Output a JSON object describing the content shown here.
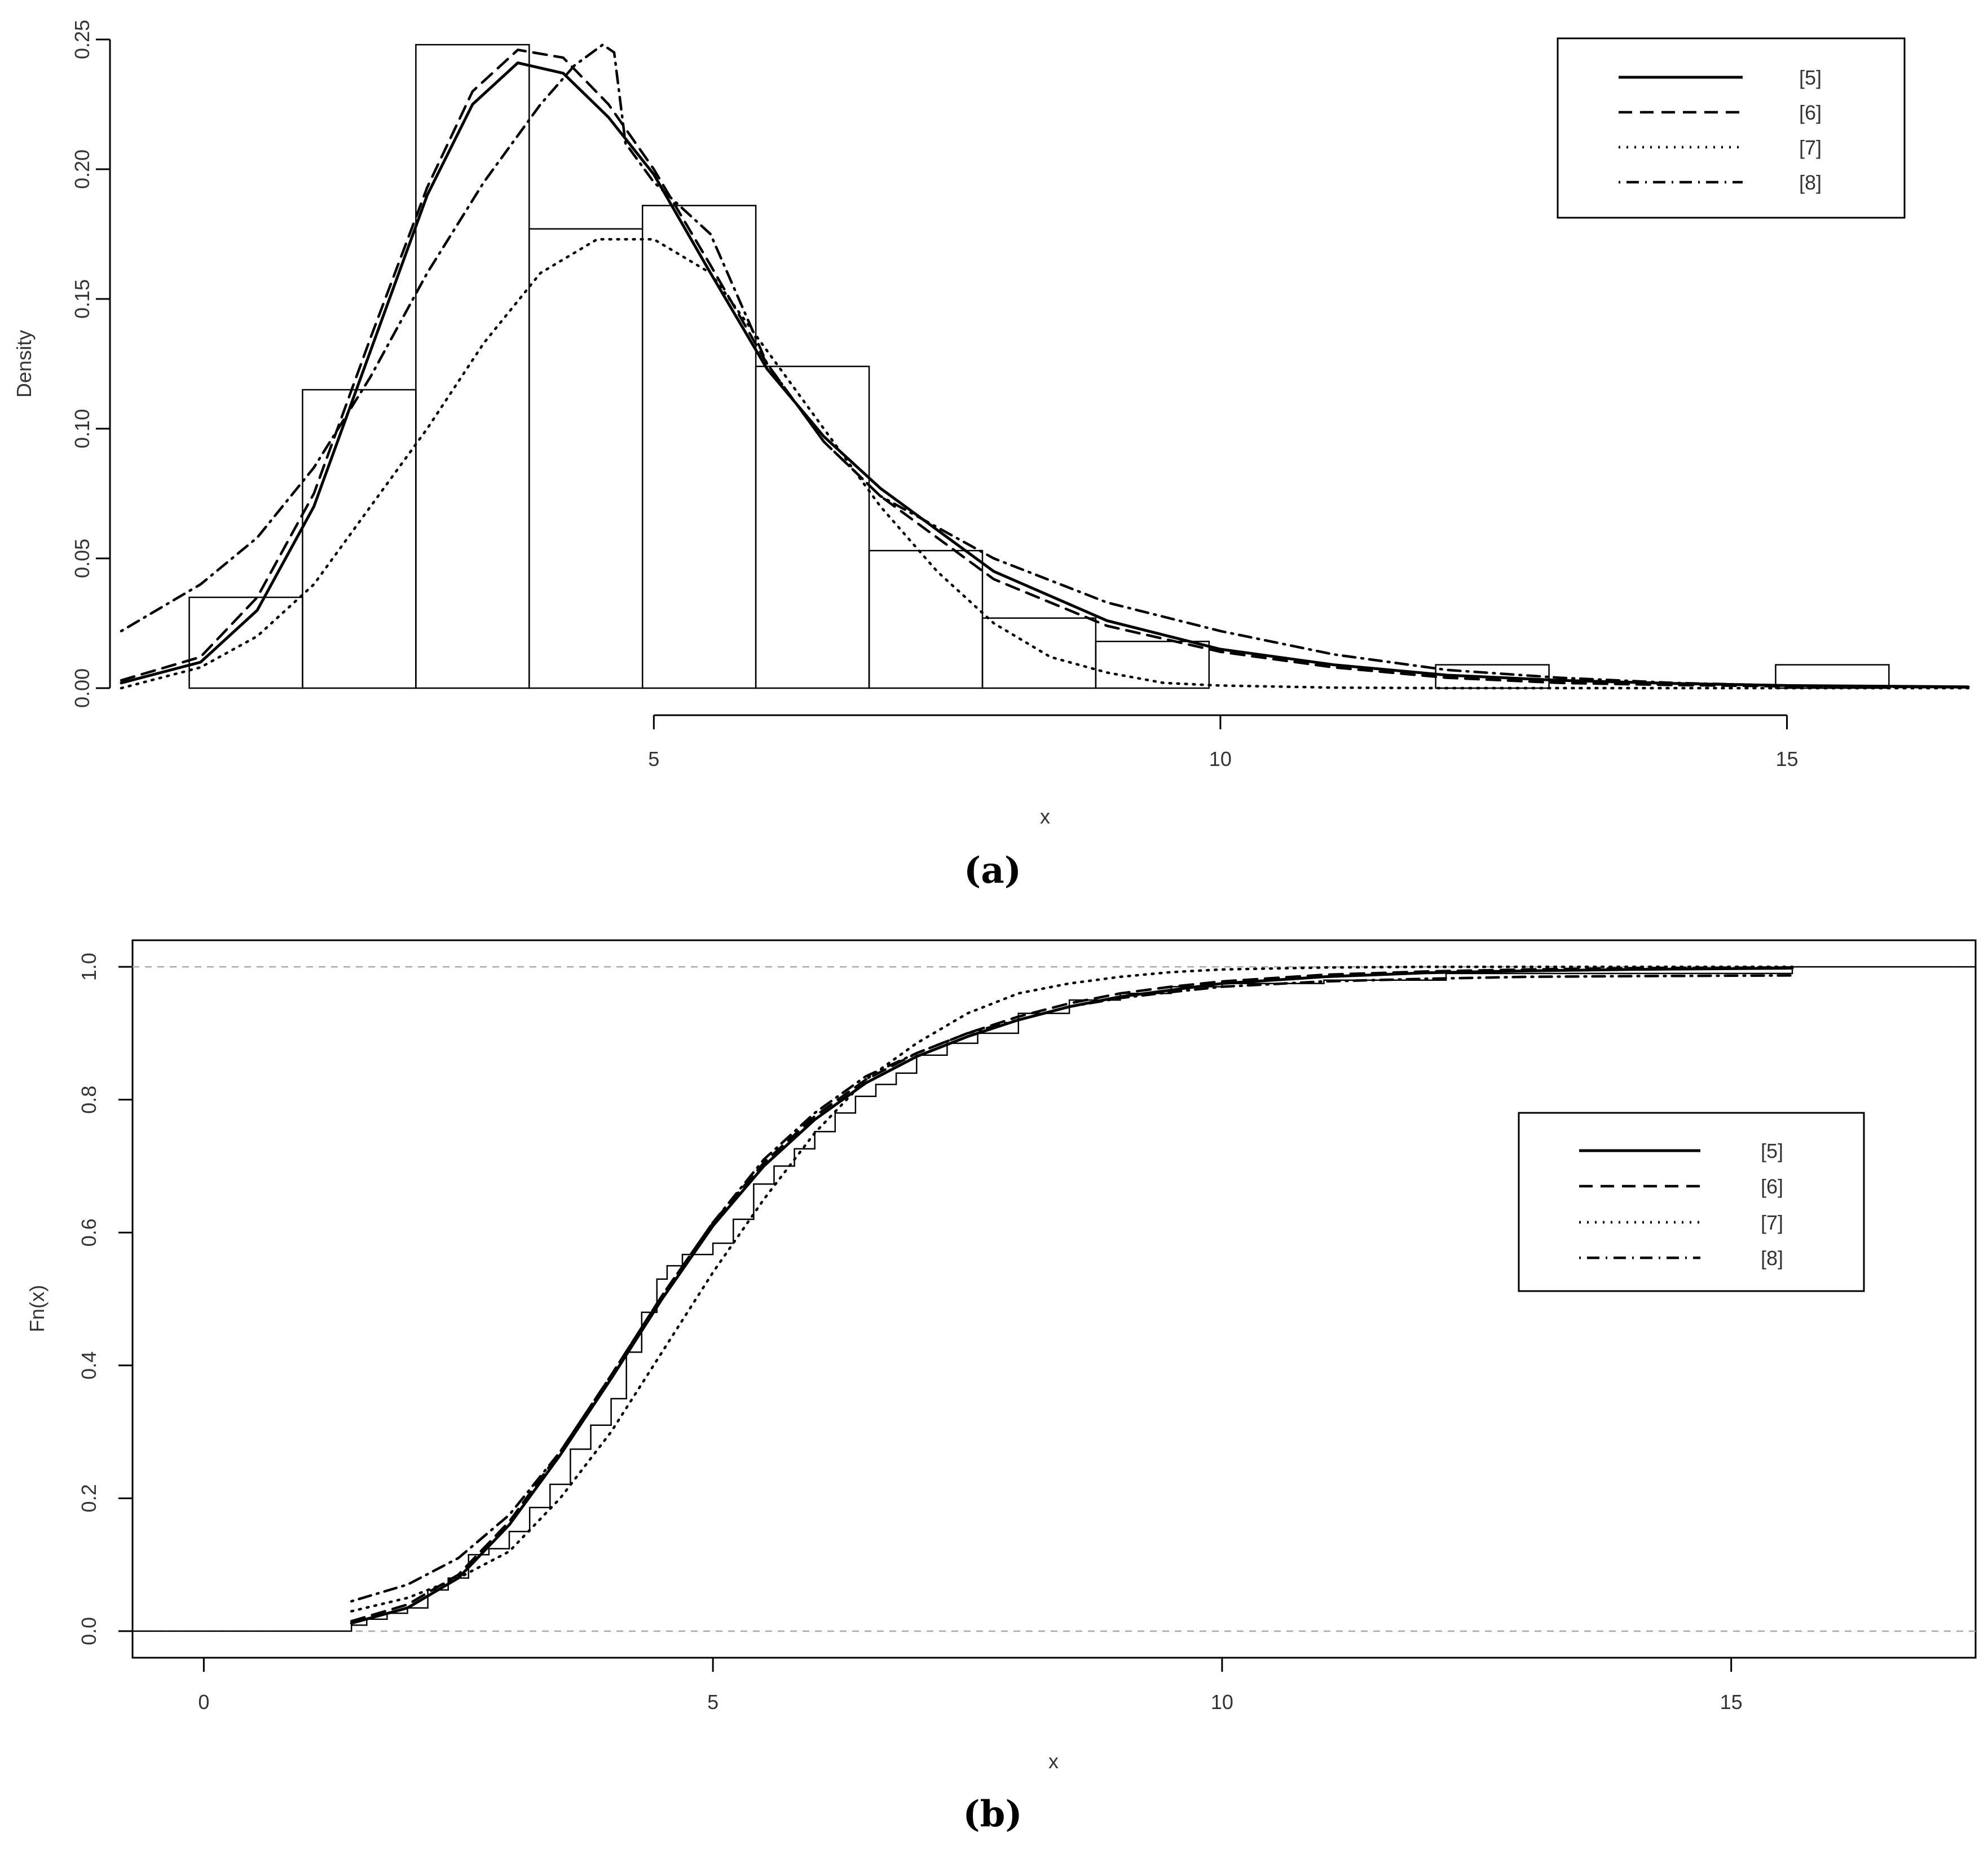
{
  "panels": [
    {
      "caption": "(a)",
      "xlabel": "x",
      "ylabel": "Density",
      "x_ticks": [
        "5",
        "10",
        "15"
      ],
      "y_ticks": [
        "0.00",
        "0.05",
        "0.10",
        "0.15",
        "0.20",
        "0.25"
      ],
      "legend": [
        "[5]",
        "[6]",
        "[7]",
        "[8]"
      ]
    },
    {
      "caption": "(b)",
      "xlabel": "x",
      "ylabel": "Fn(x)",
      "x_ticks": [
        "0",
        "5",
        "10",
        "15"
      ],
      "y_ticks": [
        "0.0",
        "0.2",
        "0.4",
        "0.6",
        "0.8",
        "1.0"
      ],
      "legend": [
        "[5]",
        "[6]",
        "[7]",
        "[8]"
      ]
    }
  ],
  "chart_data": [
    {
      "type": "histogram with fitted density curves",
      "xlabel": "x",
      "ylabel": "Density",
      "xlim": [
        0.3,
        16.6
      ],
      "ylim": [
        0,
        0.25
      ],
      "grid": false,
      "legend_position": "top-right",
      "bins": [
        {
          "from": 0.9,
          "to": 1.9,
          "density": 0.035
        },
        {
          "from": 1.9,
          "to": 2.9,
          "density": 0.115
        },
        {
          "from": 2.9,
          "to": 3.9,
          "density": 0.248
        },
        {
          "from": 3.9,
          "to": 4.9,
          "density": 0.177
        },
        {
          "from": 4.9,
          "to": 5.9,
          "density": 0.186
        },
        {
          "from": 5.9,
          "to": 6.9,
          "density": 0.124
        },
        {
          "from": 6.9,
          "to": 7.9,
          "density": 0.053
        },
        {
          "from": 7.9,
          "to": 8.9,
          "density": 0.027
        },
        {
          "from": 8.9,
          "to": 9.9,
          "density": 0.018
        },
        {
          "from": 9.9,
          "to": 10.9,
          "density": 0.0
        },
        {
          "from": 10.9,
          "to": 11.9,
          "density": 0.0
        },
        {
          "from": 11.9,
          "to": 12.9,
          "density": 0.009
        },
        {
          "from": 12.9,
          "to": 13.9,
          "density": 0.0
        },
        {
          "from": 13.9,
          "to": 14.9,
          "density": 0.0
        },
        {
          "from": 14.9,
          "to": 15.9,
          "density": 0.009
        }
      ],
      "series": [
        {
          "name": "[5]",
          "style": "solid",
          "x": [
            0.3,
            1.0,
            1.5,
            2.0,
            2.5,
            3.0,
            3.4,
            3.8,
            4.2,
            4.6,
            5.0,
            5.5,
            6.0,
            6.5,
            7.0,
            8.0,
            9.0,
            10.0,
            11.0,
            12.0,
            13.0,
            14.0,
            15.0,
            16.6
          ],
          "y": [
            0.002,
            0.01,
            0.03,
            0.07,
            0.13,
            0.19,
            0.225,
            0.241,
            0.237,
            0.22,
            0.198,
            0.16,
            0.123,
            0.097,
            0.077,
            0.045,
            0.026,
            0.015,
            0.009,
            0.005,
            0.003,
            0.0018,
            0.001,
            0.0005
          ]
        },
        {
          "name": "[6]",
          "style": "dashed",
          "x": [
            0.3,
            1.0,
            1.5,
            2.0,
            2.5,
            3.0,
            3.4,
            3.8,
            4.2,
            4.6,
            5.0,
            5.5,
            6.0,
            6.5,
            7.0,
            8.0,
            9.0,
            10.0,
            11.0,
            12.0,
            13.0,
            14.0,
            15.0,
            16.6
          ],
          "y": [
            0.003,
            0.012,
            0.035,
            0.075,
            0.135,
            0.193,
            0.23,
            0.246,
            0.243,
            0.225,
            0.2,
            0.163,
            0.125,
            0.095,
            0.074,
            0.042,
            0.024,
            0.014,
            0.008,
            0.004,
            0.002,
            0.0012,
            0.0007,
            0.0003
          ]
        },
        {
          "name": "[7]",
          "style": "dotted",
          "x": [
            0.3,
            1.0,
            1.5,
            2.0,
            2.5,
            3.0,
            3.5,
            4.0,
            4.5,
            5.0,
            5.5,
            6.0,
            6.5,
            7.0,
            7.5,
            8.0,
            8.5,
            9.0,
            9.5,
            10.0,
            11.0,
            12.0,
            16.6
          ],
          "y": [
            0.0,
            0.008,
            0.02,
            0.04,
            0.07,
            0.1,
            0.133,
            0.16,
            0.173,
            0.173,
            0.16,
            0.13,
            0.1,
            0.07,
            0.045,
            0.025,
            0.012,
            0.006,
            0.002,
            0.001,
            0.0002,
            0.0,
            0.0
          ]
        },
        {
          "name": "[8]",
          "style": "dot-dash",
          "x": [
            0.3,
            1.0,
            1.5,
            2.0,
            2.5,
            3.0,
            3.5,
            4.0,
            4.3,
            4.55,
            4.65,
            4.75,
            5.0,
            5.5,
            6.0,
            6.5,
            7.0,
            8.0,
            9.0,
            10.0,
            11.0,
            12.0,
            13.0,
            14.0,
            15.0,
            16.6
          ],
          "y": [
            0.022,
            0.04,
            0.058,
            0.085,
            0.12,
            0.16,
            0.195,
            0.225,
            0.24,
            0.248,
            0.245,
            0.21,
            0.195,
            0.175,
            0.125,
            0.095,
            0.074,
            0.05,
            0.033,
            0.022,
            0.013,
            0.007,
            0.004,
            0.002,
            0.001,
            0.0003
          ]
        }
      ]
    },
    {
      "type": "empirical CDF with fitted distribution functions",
      "xlabel": "x",
      "ylabel": "Fn(x)",
      "xlim": [
        -0.7,
        17.4
      ],
      "ylim": [
        -0.04,
        1.04
      ],
      "grid": false,
      "reference_lines": [
        0,
        1
      ],
      "legend_position": "top-right",
      "ecdf_steps": {
        "x": [
          1.45,
          1.6,
          1.8,
          2.0,
          2.2,
          2.4,
          2.6,
          2.8,
          3.0,
          3.2,
          3.4,
          3.6,
          3.8,
          4.0,
          4.15,
          4.3,
          4.45,
          4.55,
          4.7,
          5.0,
          5.2,
          5.4,
          5.6,
          5.8,
          6.0,
          6.2,
          6.4,
          6.6,
          6.8,
          7.0,
          7.3,
          7.6,
          8.0,
          8.5,
          9.0,
          9.5,
          10.0,
          11.0,
          12.2,
          15.6
        ],
        "y": [
          0.009,
          0.018,
          0.027,
          0.035,
          0.062,
          0.08,
          0.115,
          0.124,
          0.15,
          0.186,
          0.221,
          0.274,
          0.31,
          0.35,
          0.42,
          0.48,
          0.53,
          0.55,
          0.567,
          0.584,
          0.62,
          0.673,
          0.7,
          0.726,
          0.752,
          0.78,
          0.805,
          0.823,
          0.84,
          0.867,
          0.885,
          0.9,
          0.93,
          0.95,
          0.96,
          0.97,
          0.975,
          0.98,
          0.99,
          1.0
        ]
      },
      "series": [
        {
          "name": "[5]",
          "style": "solid",
          "x": [
            1.45,
            2.0,
            2.5,
            3.0,
            3.5,
            4.0,
            4.5,
            5.0,
            5.5,
            6.0,
            6.5,
            7.0,
            7.5,
            8.0,
            8.5,
            9.0,
            9.5,
            10.0,
            11.0,
            12.0,
            13.0,
            14.0,
            15.6
          ],
          "y": [
            0.012,
            0.035,
            0.08,
            0.16,
            0.265,
            0.38,
            0.5,
            0.61,
            0.7,
            0.77,
            0.825,
            0.865,
            0.895,
            0.92,
            0.94,
            0.955,
            0.965,
            0.975,
            0.985,
            0.991,
            0.994,
            0.996,
            0.998
          ]
        },
        {
          "name": "[6]",
          "style": "dashed",
          "x": [
            1.45,
            2.0,
            2.5,
            3.0,
            3.5,
            4.0,
            4.5,
            5.0,
            5.5,
            6.0,
            6.5,
            7.0,
            7.5,
            8.0,
            8.5,
            9.0,
            9.5,
            10.0,
            11.0,
            12.0,
            13.0,
            14.0,
            15.6
          ],
          "y": [
            0.015,
            0.04,
            0.085,
            0.165,
            0.27,
            0.385,
            0.505,
            0.615,
            0.705,
            0.775,
            0.83,
            0.87,
            0.9,
            0.925,
            0.945,
            0.96,
            0.97,
            0.978,
            0.988,
            0.993,
            0.996,
            0.998,
            0.999
          ]
        },
        {
          "name": "[7]",
          "style": "dotted",
          "x": [
            1.45,
            2.0,
            2.5,
            3.0,
            3.5,
            4.0,
            4.5,
            5.0,
            5.5,
            6.0,
            6.5,
            7.0,
            7.5,
            8.0,
            8.5,
            9.0,
            9.5,
            10.0,
            11.0,
            12.0,
            15.6
          ],
          "y": [
            0.03,
            0.05,
            0.08,
            0.12,
            0.2,
            0.3,
            0.42,
            0.54,
            0.65,
            0.75,
            0.83,
            0.885,
            0.93,
            0.96,
            0.975,
            0.985,
            0.992,
            0.996,
            0.999,
            1.0,
            1.0
          ]
        },
        {
          "name": "[8]",
          "style": "dot-dash",
          "x": [
            1.45,
            2.0,
            2.5,
            3.0,
            3.5,
            4.0,
            4.5,
            5.0,
            5.5,
            6.0,
            6.5,
            7.0,
            7.5,
            8.0,
            8.5,
            9.0,
            9.5,
            10.0,
            11.0,
            12.0,
            13.0,
            14.0,
            15.6
          ],
          "y": [
            0.045,
            0.07,
            0.11,
            0.175,
            0.27,
            0.385,
            0.505,
            0.615,
            0.71,
            0.78,
            0.835,
            0.87,
            0.9,
            0.92,
            0.94,
            0.953,
            0.962,
            0.97,
            0.978,
            0.982,
            0.985,
            0.986,
            0.987
          ]
        }
      ]
    }
  ]
}
